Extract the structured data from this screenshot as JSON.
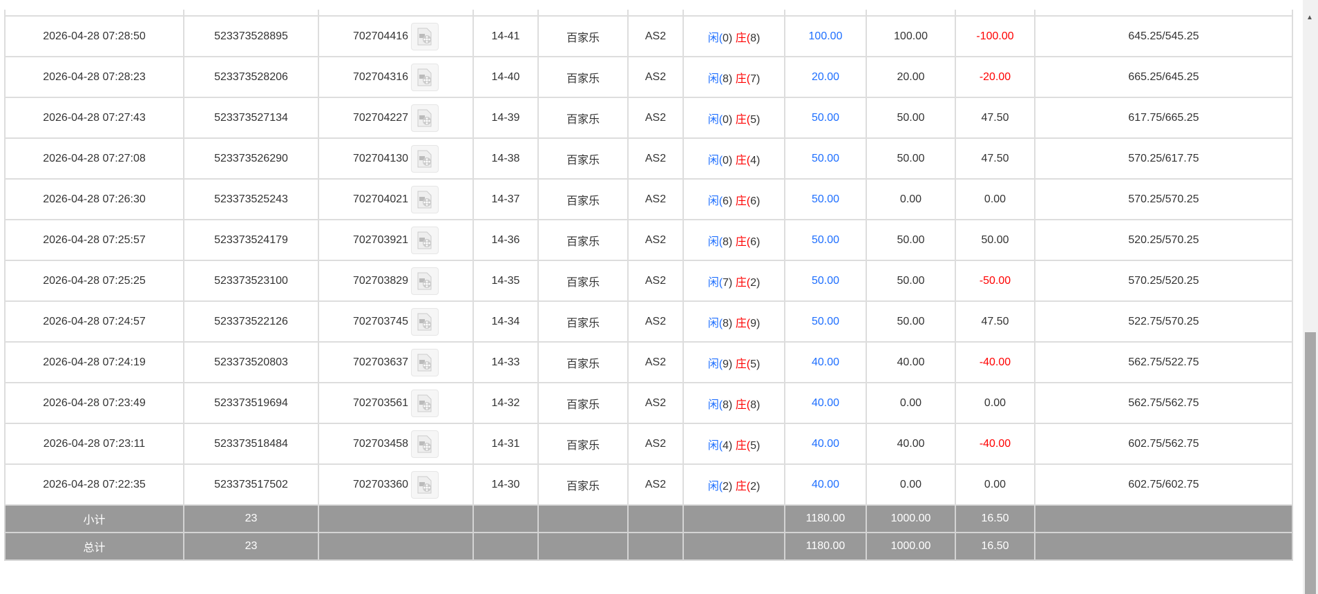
{
  "rows": [
    {
      "time": "2026-04-28 07:28:50",
      "bet_id": "523373528895",
      "round": "702704416",
      "shoe": "14-41",
      "game": "百家乐",
      "table": "AS2",
      "p": "闲(0)",
      "b": "庄(8)",
      "bet": "100.00",
      "valid": "100.00",
      "win": "-100.00",
      "win_neg": true,
      "balance": "645.25/545.25"
    },
    {
      "time": "2026-04-28 07:28:23",
      "bet_id": "523373528206",
      "round": "702704316",
      "shoe": "14-40",
      "game": "百家乐",
      "table": "AS2",
      "p": "闲(8)",
      "b": "庄(7)",
      "bet": "20.00",
      "valid": "20.00",
      "win": "-20.00",
      "win_neg": true,
      "balance": "665.25/645.25"
    },
    {
      "time": "2026-04-28 07:27:43",
      "bet_id": "523373527134",
      "round": "702704227",
      "shoe": "14-39",
      "game": "百家乐",
      "table": "AS2",
      "p": "闲(0)",
      "b": "庄(5)",
      "bet": "50.00",
      "valid": "50.00",
      "win": "47.50",
      "win_neg": false,
      "balance": "617.75/665.25"
    },
    {
      "time": "2026-04-28 07:27:08",
      "bet_id": "523373526290",
      "round": "702704130",
      "shoe": "14-38",
      "game": "百家乐",
      "table": "AS2",
      "p": "闲(0)",
      "b": "庄(4)",
      "bet": "50.00",
      "valid": "50.00",
      "win": "47.50",
      "win_neg": false,
      "balance": "570.25/617.75"
    },
    {
      "time": "2026-04-28 07:26:30",
      "bet_id": "523373525243",
      "round": "702704021",
      "shoe": "14-37",
      "game": "百家乐",
      "table": "AS2",
      "p": "闲(6)",
      "b": "庄(6)",
      "bet": "50.00",
      "valid": "0.00",
      "win": "0.00",
      "win_neg": false,
      "balance": "570.25/570.25"
    },
    {
      "time": "2026-04-28 07:25:57",
      "bet_id": "523373524179",
      "round": "702703921",
      "shoe": "14-36",
      "game": "百家乐",
      "table": "AS2",
      "p": "闲(8)",
      "b": "庄(6)",
      "bet": "50.00",
      "valid": "50.00",
      "win": "50.00",
      "win_neg": false,
      "balance": "520.25/570.25"
    },
    {
      "time": "2026-04-28 07:25:25",
      "bet_id": "523373523100",
      "round": "702703829",
      "shoe": "14-35",
      "game": "百家乐",
      "table": "AS2",
      "p": "闲(7)",
      "b": "庄(2)",
      "bet": "50.00",
      "valid": "50.00",
      "win": "-50.00",
      "win_neg": true,
      "balance": "570.25/520.25"
    },
    {
      "time": "2026-04-28 07:24:57",
      "bet_id": "523373522126",
      "round": "702703745",
      "shoe": "14-34",
      "game": "百家乐",
      "table": "AS2",
      "p": "闲(8)",
      "b": "庄(9)",
      "bet": "50.00",
      "valid": "50.00",
      "win": "47.50",
      "win_neg": false,
      "balance": "522.75/570.25"
    },
    {
      "time": "2026-04-28 07:24:19",
      "bet_id": "523373520803",
      "round": "702703637",
      "shoe": "14-33",
      "game": "百家乐",
      "table": "AS2",
      "p": "闲(9)",
      "b": "庄(5)",
      "bet": "40.00",
      "valid": "40.00",
      "win": "-40.00",
      "win_neg": true,
      "balance": "562.75/522.75"
    },
    {
      "time": "2026-04-28 07:23:49",
      "bet_id": "523373519694",
      "round": "702703561",
      "shoe": "14-32",
      "game": "百家乐",
      "table": "AS2",
      "p": "闲(8)",
      "b": "庄(8)",
      "bet": "40.00",
      "valid": "0.00",
      "win": "0.00",
      "win_neg": false,
      "balance": "562.75/562.75"
    },
    {
      "time": "2026-04-28 07:23:11",
      "bet_id": "523373518484",
      "round": "702703458",
      "shoe": "14-31",
      "game": "百家乐",
      "table": "AS2",
      "p": "闲(4)",
      "b": "庄(5)",
      "bet": "40.00",
      "valid": "40.00",
      "win": "-40.00",
      "win_neg": true,
      "balance": "602.75/562.75"
    },
    {
      "time": "2026-04-28 07:22:35",
      "bet_id": "523373517502",
      "round": "702703360",
      "shoe": "14-30",
      "game": "百家乐",
      "table": "AS2",
      "p": "闲(2)",
      "b": "庄(2)",
      "bet": "40.00",
      "valid": "0.00",
      "win": "0.00",
      "win_neg": false,
      "balance": "602.75/602.75"
    }
  ],
  "subtotal": {
    "label": "小计",
    "count": "23",
    "bet": "1180.00",
    "valid": "1000.00",
    "win": "16.50"
  },
  "total": {
    "label": "总计",
    "count": "23",
    "bet": "1180.00",
    "valid": "1000.00",
    "win": "16.50"
  },
  "colors": {
    "player": "#1e6fff",
    "banker": "#ff0000",
    "loss": "#ff0000",
    "summary_bg": "#999999"
  },
  "icons": {
    "replay": "video-file-icon"
  }
}
